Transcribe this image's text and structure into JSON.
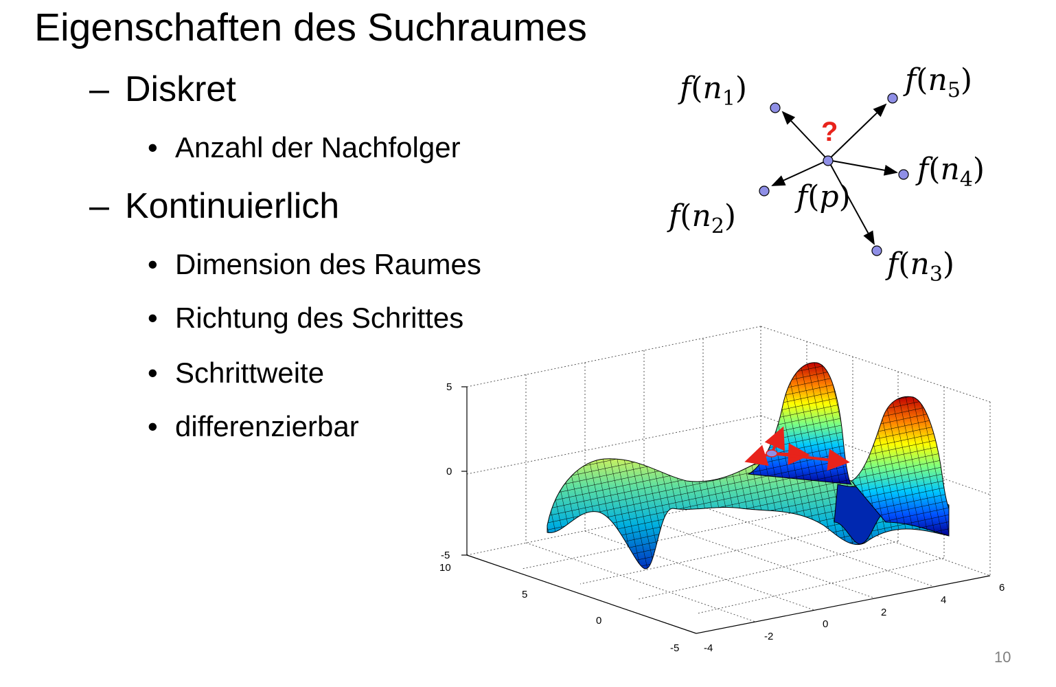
{
  "slide": {
    "title": "Eigenschaften des Suchraumes",
    "page_number": "10",
    "bullets": [
      {
        "label": "Diskret",
        "dash": "–",
        "children": [
          "Anzahl der Nachfolger"
        ]
      },
      {
        "label": "Kontinuierlich",
        "dash": "–",
        "children": [
          "Dimension des Raumes",
          "Richtung des Schrittes",
          "Schrittweite",
          "differenzierbar"
        ]
      }
    ],
    "bullet_symbol": "•"
  },
  "neighbor_diagram": {
    "center_label": {
      "f": "f",
      "arg": "p"
    },
    "question_mark": "?",
    "neighbors": [
      {
        "f": "f",
        "arg": "n",
        "sub": "1"
      },
      {
        "f": "f",
        "arg": "n",
        "sub": "2"
      },
      {
        "f": "f",
        "arg": "n",
        "sub": "3"
      },
      {
        "f": "f",
        "arg": "n",
        "sub": "4"
      },
      {
        "f": "f",
        "arg": "n",
        "sub": "5"
      }
    ],
    "node_color": "#8f8fe6",
    "question_color": "#e8231b"
  },
  "surface_plot": {
    "z_ticks": [
      "5",
      "0",
      "-5"
    ],
    "y_ticks": [
      "10",
      "5",
      "0",
      "-5"
    ],
    "x_ticks": [
      "-4",
      "-2",
      "0",
      "2",
      "4",
      "6"
    ],
    "colormap": "jet",
    "arrow_color": "#e8231b"
  }
}
